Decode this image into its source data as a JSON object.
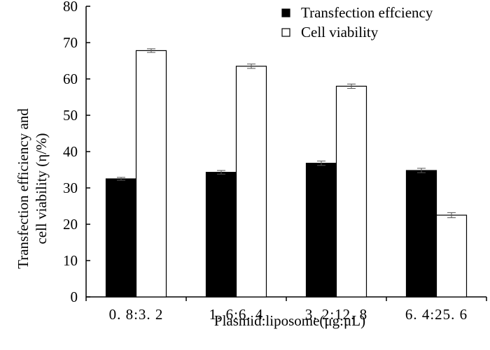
{
  "chart_data": {
    "type": "bar",
    "title": "",
    "categories": [
      "0. 8:3. 2",
      "1. 6:6. 4",
      "3. 2:12. 8",
      "6. 4:25. 6"
    ],
    "series": [
      {
        "name": "Transfection effciency",
        "fill": "#000000",
        "values": [
          32.5,
          34.3,
          36.8,
          34.8
        ],
        "errors": [
          0.4,
          0.5,
          0.6,
          0.6
        ]
      },
      {
        "name": "Cell viability",
        "fill": "#ffffff",
        "values": [
          67.8,
          63.5,
          58.0,
          22.5
        ],
        "errors": [
          0.5,
          0.6,
          0.6,
          0.7
        ]
      }
    ],
    "xlabel": "Plasmid:liposome(μg:μL)",
    "ylabel_lines": [
      "Transfection efficiency and",
      "cell viability (η/%)"
    ],
    "ylim": [
      0,
      80
    ],
    "yticks": [
      0,
      10,
      20,
      30,
      40,
      50,
      60,
      70,
      80
    ],
    "grid": false,
    "legend_position": "top-right"
  }
}
